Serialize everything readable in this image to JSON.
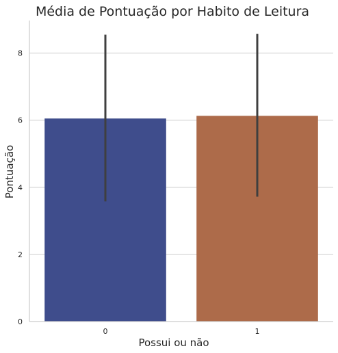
{
  "chart_data": {
    "type": "bar",
    "title": "Média de Pontuação por Habito de Leitura",
    "xlabel": "Possui ou não",
    "ylabel": "Pontuação",
    "categories": [
      "0",
      "1"
    ],
    "values": [
      6.05,
      6.13
    ],
    "error_low": [
      3.58,
      3.72
    ],
    "error_high": [
      8.55,
      8.57
    ],
    "ylim": [
      0,
      8.97
    ],
    "yticks": [
      0,
      2,
      4,
      6,
      8
    ],
    "ytick_labels": [
      "0",
      "2",
      "4",
      "6",
      "8"
    ],
    "grid": true,
    "colors": [
      "#3f4d8c",
      "#ad6b4a"
    ],
    "error_color": "#3f3f3f"
  }
}
